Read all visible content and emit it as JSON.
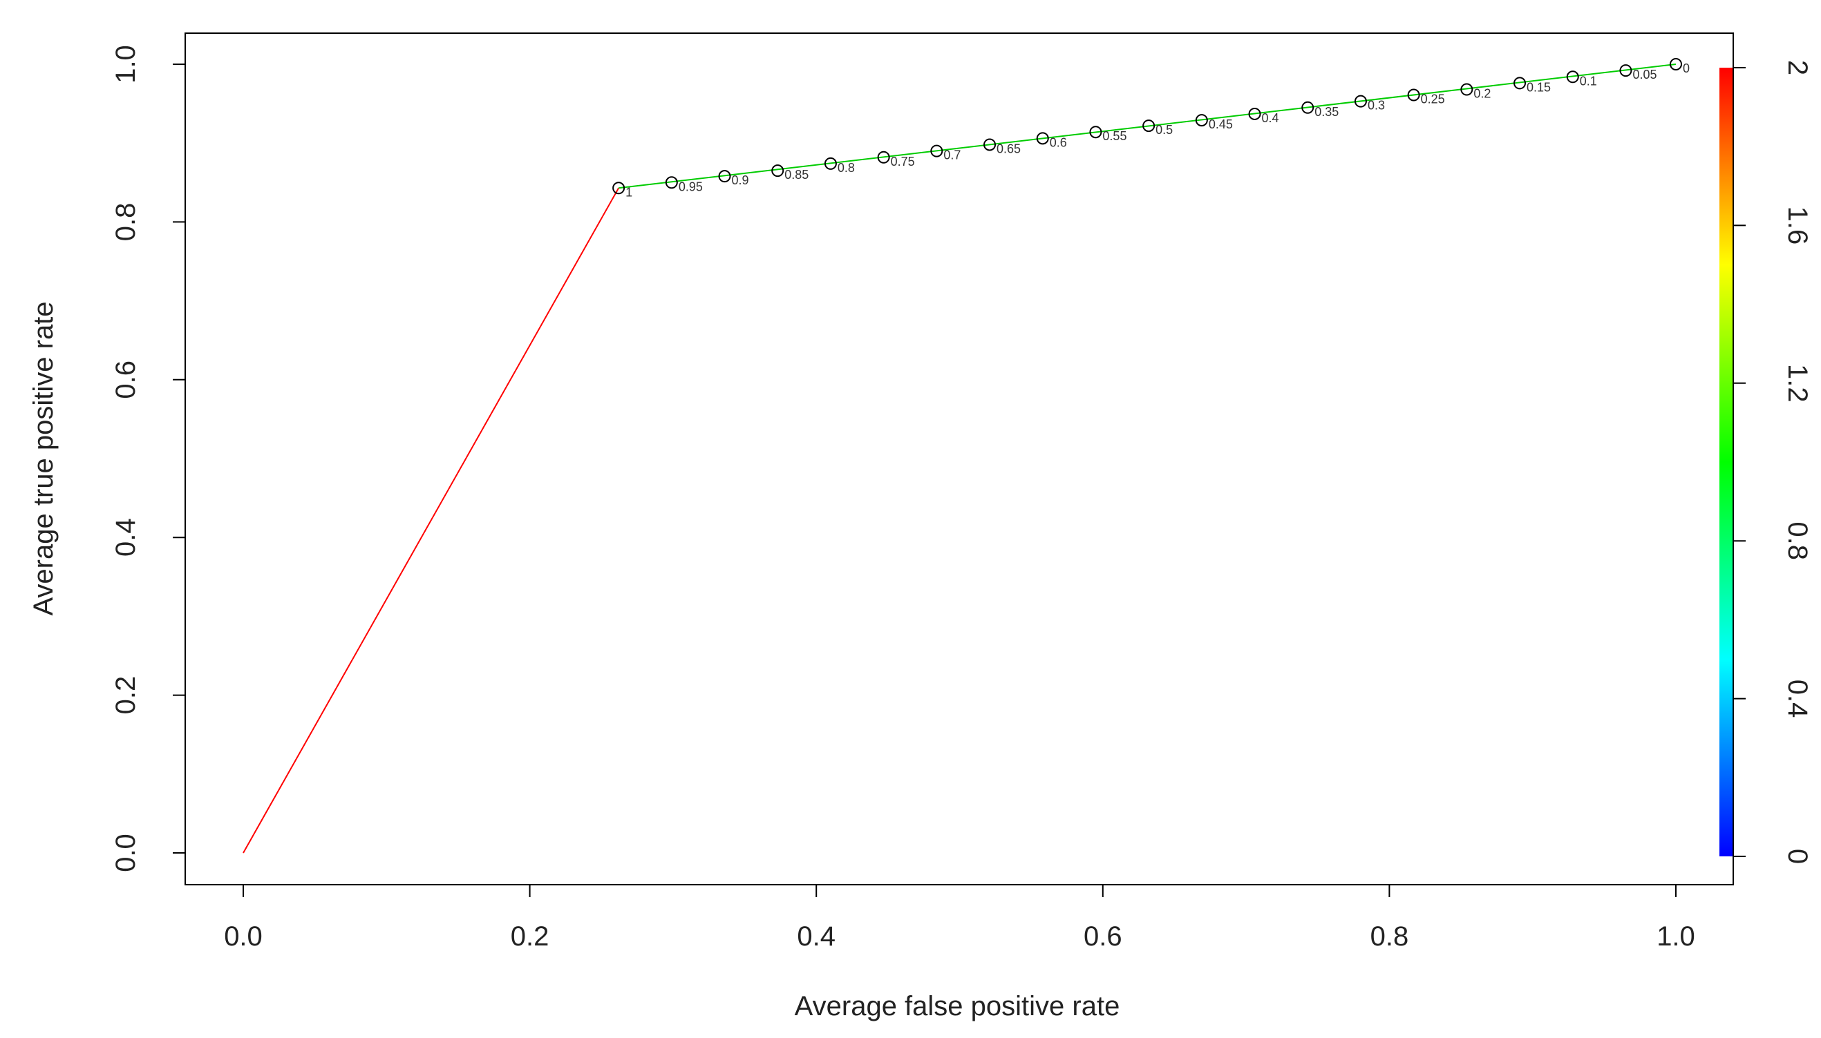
{
  "chart_data": {
    "type": "line",
    "title": "",
    "xlabel": "Average false positive rate",
    "ylabel": "Average true positive rate",
    "xlim": [
      0,
      1
    ],
    "ylim": [
      0,
      1
    ],
    "x_ticks": [
      "0.0",
      "0.2",
      "0.4",
      "0.6",
      "0.8",
      "1.0"
    ],
    "y_ticks": [
      "0.0",
      "0.2",
      "0.4",
      "0.6",
      "0.8",
      "1.0"
    ],
    "grid": false,
    "colorbar": {
      "range": [
        0,
        2
      ],
      "ticks": [
        "0",
        "0.4",
        "0.8",
        "1.2",
        "1.6",
        "2"
      ],
      "colors": [
        "#0000ff",
        "#00ffff",
        "#00ff00",
        "#ffff00",
        "#ff0000"
      ]
    },
    "segments": [
      {
        "x": [
          0.0,
          0.262
        ],
        "y": [
          0.0,
          0.843
        ],
        "color": "#ff0000"
      },
      {
        "x": [
          0.262,
          1.0
        ],
        "y": [
          0.843,
          1.0
        ],
        "color": "#00cc00"
      }
    ],
    "points": [
      {
        "x": 0.262,
        "y": 0.843,
        "label": "1"
      },
      {
        "x": 0.299,
        "y": 0.85,
        "label": "0.95"
      },
      {
        "x": 0.336,
        "y": 0.858,
        "label": "0.9"
      },
      {
        "x": 0.373,
        "y": 0.865,
        "label": "0.85"
      },
      {
        "x": 0.41,
        "y": 0.874,
        "label": "0.8"
      },
      {
        "x": 0.447,
        "y": 0.882,
        "label": "0.75"
      },
      {
        "x": 0.484,
        "y": 0.89,
        "label": "0.7"
      },
      {
        "x": 0.521,
        "y": 0.898,
        "label": "0.65"
      },
      {
        "x": 0.558,
        "y": 0.906,
        "label": "0.6"
      },
      {
        "x": 0.595,
        "y": 0.914,
        "label": "0.55"
      },
      {
        "x": 0.632,
        "y": 0.922,
        "label": "0.5"
      },
      {
        "x": 0.669,
        "y": 0.929,
        "label": "0.45"
      },
      {
        "x": 0.706,
        "y": 0.937,
        "label": "0.4"
      },
      {
        "x": 0.743,
        "y": 0.945,
        "label": "0.35"
      },
      {
        "x": 0.78,
        "y": 0.953,
        "label": "0.3"
      },
      {
        "x": 0.817,
        "y": 0.961,
        "label": "0.25"
      },
      {
        "x": 0.854,
        "y": 0.968,
        "label": "0.2"
      },
      {
        "x": 0.891,
        "y": 0.976,
        "label": "0.15"
      },
      {
        "x": 0.928,
        "y": 0.984,
        "label": "0.1"
      },
      {
        "x": 0.965,
        "y": 0.992,
        "label": "0.05"
      },
      {
        "x": 1.0,
        "y": 1.0,
        "label": "0"
      }
    ]
  }
}
